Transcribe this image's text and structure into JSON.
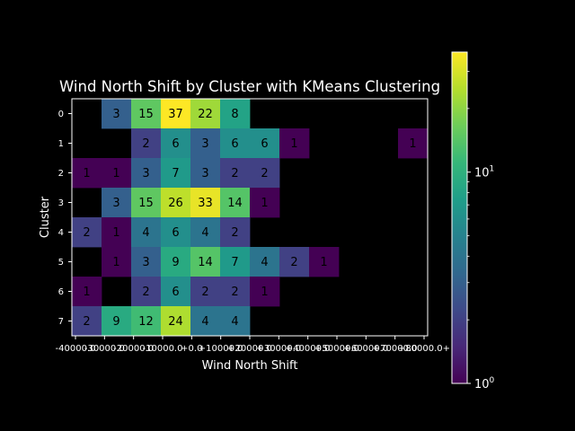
{
  "chart_data": {
    "type": "heatmap",
    "title": "Wind North Shift by Cluster with KMeans Clustering",
    "xlabel": "Wind North Shift",
    "ylabel": "Cluster",
    "x_tick_labels": [
      "-40000.0",
      "-30000.0",
      "-20000.0",
      "-10000.0",
      "+0.0",
      "+10000.0",
      "+20000.0",
      "+30000.0",
      "+40000.0",
      "+50000.0",
      "+60000.0",
      "+70000.0",
      "+80000.0+"
    ],
    "y_categories": [
      "0",
      "1",
      "2",
      "3",
      "4",
      "5",
      "6",
      "7"
    ],
    "n_x_bins": 12,
    "cells": [
      [
        null,
        3,
        15,
        37,
        22,
        8,
        null,
        null,
        null,
        null,
        null,
        null
      ],
      [
        null,
        null,
        2,
        6,
        3,
        6,
        6,
        1,
        null,
        null,
        null,
        1
      ],
      [
        1,
        1,
        3,
        7,
        3,
        2,
        2,
        null,
        null,
        null,
        null,
        null
      ],
      [
        null,
        3,
        15,
        26,
        33,
        14,
        1,
        null,
        null,
        null,
        null,
        null
      ],
      [
        2,
        1,
        4,
        6,
        4,
        2,
        null,
        null,
        null,
        null,
        null,
        null
      ],
      [
        null,
        1,
        3,
        9,
        14,
        7,
        4,
        2,
        1,
        null,
        null,
        null
      ],
      [
        1,
        null,
        2,
        6,
        2,
        2,
        1,
        null,
        null,
        null,
        null,
        null
      ],
      [
        2,
        9,
        12,
        24,
        4,
        4,
        null,
        null,
        null,
        null,
        null,
        null
      ]
    ],
    "color_scale": {
      "name": "viridis",
      "scale": "log",
      "min": 1,
      "max": 37,
      "tick_bases": [
        "10",
        "10"
      ],
      "tick_exponents": [
        "0",
        "1"
      ],
      "tick_values": [
        1,
        10
      ]
    },
    "colors": {
      "background": "#000000",
      "text": "#ffffff",
      "cell_label": "#000000"
    },
    "grid": false
  }
}
